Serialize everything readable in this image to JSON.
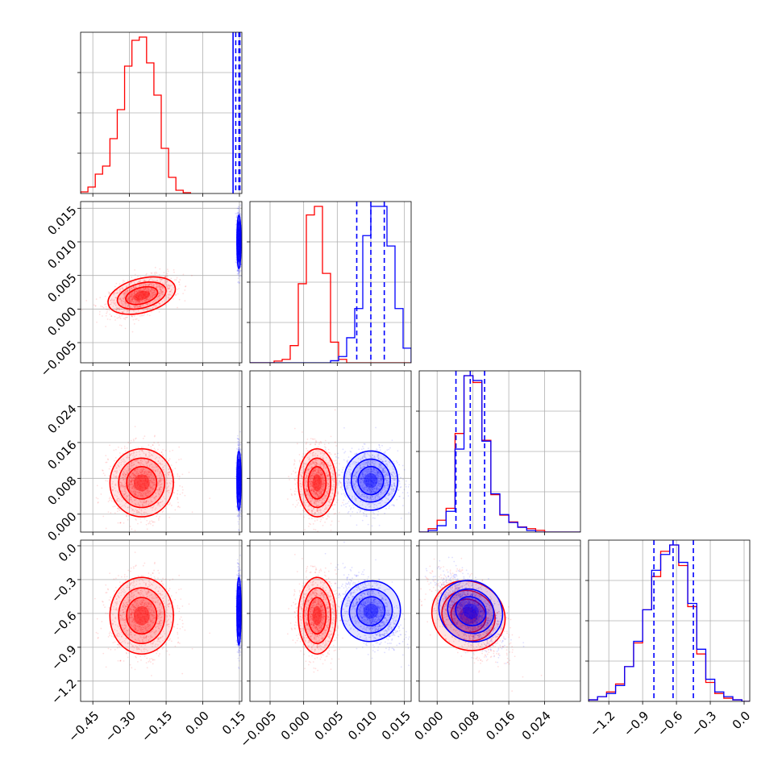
{
  "colors": {
    "series_a": "#ff0000",
    "series_b": "#0000ff"
  },
  "chart_data": {
    "type": "corner",
    "grid": true,
    "parameters": [
      {
        "key": "p0",
        "range": [
          -0.5,
          0.16
        ],
        "ticks": [
          -0.45,
          -0.3,
          -0.15,
          0.0,
          0.15
        ],
        "tick_labels": [
          "−0.45",
          "−0.30",
          "−0.15",
          "0.00",
          "0.15"
        ]
      },
      {
        "key": "p1",
        "range": [
          -0.008,
          0.016
        ],
        "ticks": [
          -0.005,
          0.0,
          0.005,
          0.01,
          0.015
        ],
        "tick_labels": [
          "−0.005",
          "0.000",
          "0.005",
          "0.010",
          "0.015"
        ]
      },
      {
        "key": "p2",
        "range": [
          -0.004,
          0.032
        ],
        "ticks": [
          0.0,
          0.008,
          0.016,
          0.024
        ],
        "tick_labels": [
          "0.000",
          "0.008",
          "0.016",
          "0.024"
        ]
      },
      {
        "key": "p3",
        "range": [
          -1.38,
          0.05
        ],
        "ticks": [
          -1.2,
          -0.9,
          -0.6,
          -0.3,
          0.0
        ],
        "tick_labels": [
          "−1.2",
          "−0.9",
          "−0.6",
          "−0.3",
          "0.0"
        ]
      }
    ],
    "series": [
      {
        "color_key": "series_a",
        "mean": [
          -0.25,
          0.002,
          0.007,
          -0.62
        ],
        "std": [
          0.065,
          0.0014,
          0.0038,
          0.17
        ],
        "corr": {
          "0-1": 0.45,
          "0-2": 0.0,
          "0-3": 0.0,
          "1-2": 0.0,
          "1-3": 0.0,
          "2-3": -0.55
        }
      },
      {
        "color_key": "series_b",
        "mean": [
          0.148,
          0.01,
          0.0075,
          -0.58
        ],
        "std": [
          0.004,
          0.002,
          0.0033,
          0.15
        ],
        "corr": {
          "0-1": 0.0,
          "0-2": 0.0,
          "0-3": 0.0,
          "1-2": 0.0,
          "1-3": -0.45,
          "2-3": -0.6
        }
      }
    ],
    "histograms": [
      {
        "param": "p0",
        "bin_edges": [
          -0.5,
          -0.47,
          -0.44,
          -0.41,
          -0.38,
          -0.35,
          -0.32,
          -0.29,
          -0.26,
          -0.23,
          -0.2,
          -0.17,
          -0.14,
          -0.11,
          -0.08,
          -0.05
        ],
        "series_a_counts": [
          0.01,
          0.04,
          0.12,
          0.17,
          0.34,
          0.52,
          0.79,
          0.95,
          0.97,
          0.81,
          0.61,
          0.28,
          0.1,
          0.02,
          0.005
        ],
        "series_b_quantiles": [
          0.135,
          0.148,
          0.152
        ],
        "series_b_note_solid_line": 0.124
      },
      {
        "param": "p1",
        "bin_edges": [
          -0.008,
          -0.0068,
          -0.0056,
          -0.0044,
          -0.0032,
          -0.002,
          -0.0008,
          0.0004,
          0.0016,
          0.0028,
          0.004,
          0.0052,
          0.0064,
          0.0076,
          0.0088,
          0.01,
          0.0112,
          0.0124,
          0.0136,
          0.0148,
          0.016
        ],
        "series_a_counts": [
          0.0,
          0.0,
          0.0,
          0.01,
          0.02,
          0.1,
          0.46,
          0.86,
          0.91,
          0.52,
          0.12,
          0.02,
          0.0,
          0.0,
          0.0,
          0.0,
          0.0,
          0.0,
          0.0,
          0.0
        ],
        "series_b_counts": [
          0.0,
          0.0,
          0.0,
          0.0,
          0.0,
          0.0,
          0.0,
          0.0,
          0.0,
          0.0,
          0.01,
          0.03,
          0.12,
          0.26,
          0.61,
          0.75,
          0.75,
          0.56,
          0.26,
          0.07
        ],
        "series_b_quantiles": [
          0.0079,
          0.01,
          0.012
        ]
      },
      {
        "param": "p2",
        "bin_edges": [
          -0.004,
          -0.002,
          0.0,
          0.002,
          0.004,
          0.006,
          0.008,
          0.01,
          0.012,
          0.014,
          0.016,
          0.018,
          0.02,
          0.022,
          0.024,
          0.026,
          0.028,
          0.03,
          0.032
        ],
        "series_a_counts": [
          0.0,
          0.02,
          0.07,
          0.14,
          0.58,
          0.92,
          0.88,
          0.54,
          0.22,
          0.1,
          0.06,
          0.03,
          0.02,
          0.01,
          0.0,
          0.0,
          0.0,
          0.0
        ],
        "series_b_counts": [
          0.0,
          0.01,
          0.04,
          0.13,
          0.52,
          0.98,
          0.95,
          0.57,
          0.24,
          0.11,
          0.06,
          0.03,
          0.01,
          0.0,
          0.0,
          0.0,
          0.0,
          0.0
        ],
        "series_b_quantiles": [
          0.0042,
          0.0074,
          0.0106
        ]
      },
      {
        "param": "p3",
        "bin_edges": [
          -1.38,
          -1.3,
          -1.22,
          -1.14,
          -1.06,
          -0.98,
          -0.9,
          -0.82,
          -0.74,
          -0.66,
          -0.58,
          -0.5,
          -0.42,
          -0.34,
          -0.26,
          -0.18,
          -0.1,
          -0.02,
          0.06
        ],
        "series_a_counts": [
          0.01,
          0.03,
          0.06,
          0.11,
          0.22,
          0.37,
          0.58,
          0.79,
          0.95,
          0.99,
          0.86,
          0.6,
          0.3,
          0.12,
          0.05,
          0.02,
          0.01,
          0.0
        ],
        "series_b_counts": [
          0.01,
          0.03,
          0.05,
          0.1,
          0.22,
          0.38,
          0.58,
          0.83,
          0.93,
          0.99,
          0.88,
          0.62,
          0.33,
          0.14,
          0.06,
          0.03,
          0.01,
          0.0
        ],
        "series_b_quantiles": [
          -0.8,
          -0.63,
          -0.45
        ]
      }
    ]
  }
}
